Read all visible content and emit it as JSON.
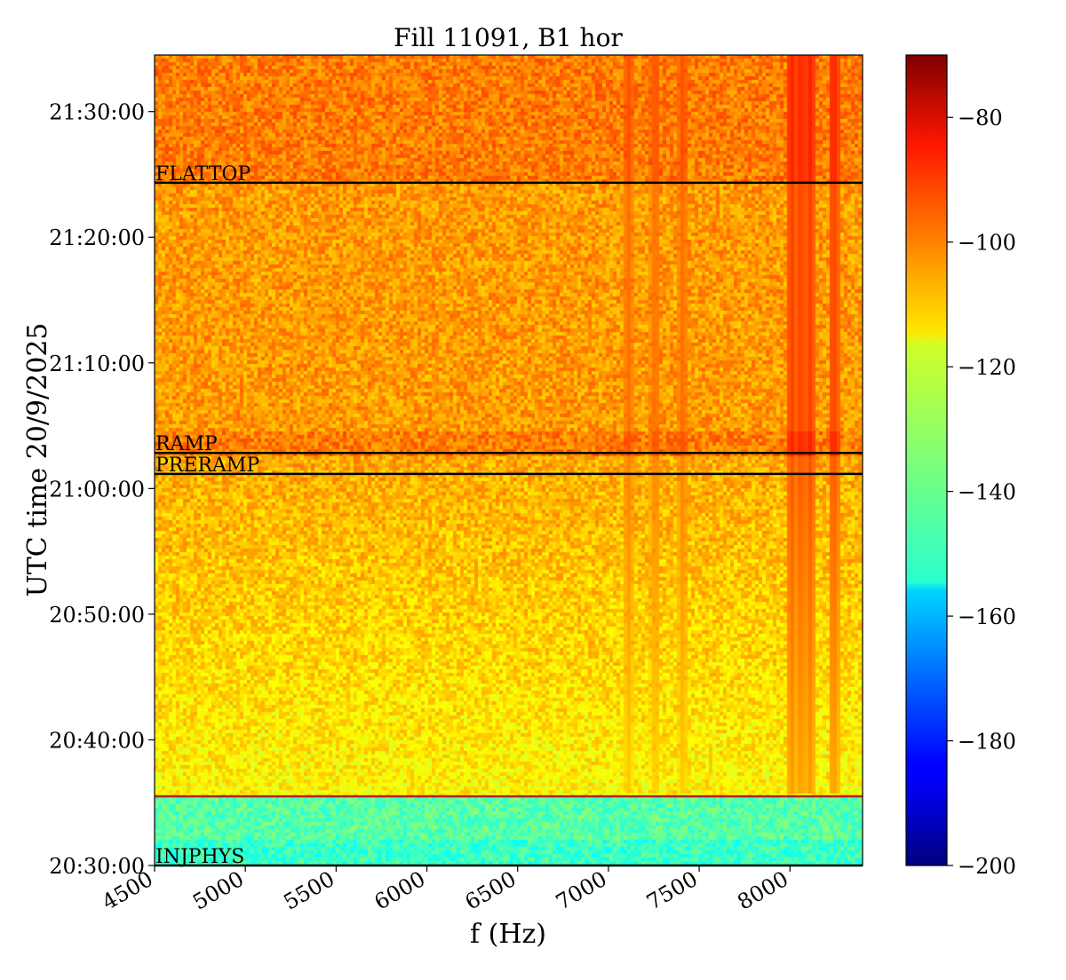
{
  "chart_data": {
    "type": "heatmap",
    "title": "Fill 11091, B1 hor",
    "xlabel": "f (Hz)",
    "ylabel": "UTC time 20/9/2025",
    "xlim": [
      4500,
      8400
    ],
    "ylim": [
      "20:30:00",
      "21:34:30"
    ],
    "x_ticks": [
      4500,
      5000,
      5500,
      6000,
      6500,
      7000,
      7500,
      8000
    ],
    "x_tick_labels": [
      "4500",
      "5000",
      "5500",
      "6000",
      "6500",
      "7000",
      "7500",
      "8000"
    ],
    "y_ticks": [
      "20:30:00",
      "20:40:00",
      "20:50:00",
      "21:00:00",
      "21:10:00",
      "21:20:00",
      "21:30:00"
    ],
    "colorbar": {
      "colormap": "jet",
      "range": [
        -200,
        -70
      ],
      "ticks": [
        -200,
        -180,
        -160,
        -140,
        -120,
        -100,
        -80
      ],
      "tick_labels": [
        "−200",
        "−180",
        "−160",
        "−140",
        "−120",
        "−100",
        "−80"
      ]
    },
    "markers": [
      {
        "label": "INJPHYS",
        "time": "20:30:00",
        "color": "#000000"
      },
      {
        "label": "",
        "time": "20:35:30",
        "color": "#b22222"
      },
      {
        "label": "PRERAMP",
        "time": "21:01:10",
        "color": "#000000"
      },
      {
        "label": "RAMP",
        "time": "21:02:50",
        "color": "#000000"
      },
      {
        "label": "FLATTOP",
        "time": "21:24:20",
        "color": "#000000"
      }
    ],
    "spectral_lines_hz": [
      8000,
      8050,
      8100,
      8230,
      7400,
      7250,
      7100
    ],
    "background_level_db": {
      "before_injection": -140,
      "injection": -118,
      "ramp": -100,
      "flattop": -102
    }
  }
}
